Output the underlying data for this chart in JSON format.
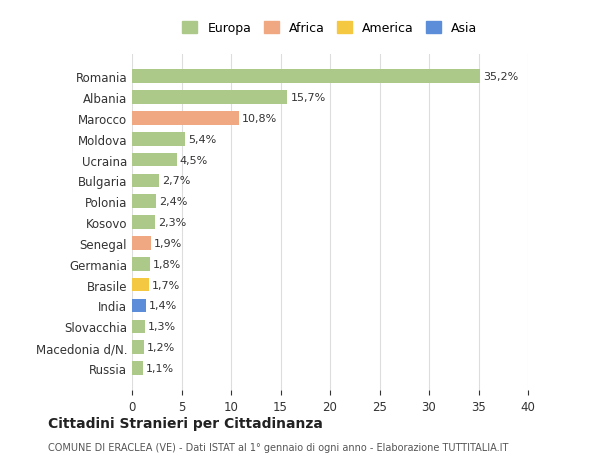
{
  "categories": [
    "Romania",
    "Albania",
    "Marocco",
    "Moldova",
    "Ucraina",
    "Bulgaria",
    "Polonia",
    "Kosovo",
    "Senegal",
    "Germania",
    "Brasile",
    "India",
    "Slovacchia",
    "Macedonia d/N.",
    "Russia"
  ],
  "values": [
    35.2,
    15.7,
    10.8,
    5.4,
    4.5,
    2.7,
    2.4,
    2.3,
    1.9,
    1.8,
    1.7,
    1.4,
    1.3,
    1.2,
    1.1
  ],
  "labels": [
    "35,2%",
    "15,7%",
    "10,8%",
    "5,4%",
    "4,5%",
    "2,7%",
    "2,4%",
    "2,3%",
    "1,9%",
    "1,8%",
    "1,7%",
    "1,4%",
    "1,3%",
    "1,2%",
    "1,1%"
  ],
  "colors": [
    "#adc98a",
    "#adc98a",
    "#f0a882",
    "#adc98a",
    "#adc98a",
    "#adc98a",
    "#adc98a",
    "#adc98a",
    "#f0a882",
    "#adc98a",
    "#f5c842",
    "#5b8dd9",
    "#adc98a",
    "#adc98a",
    "#adc98a"
  ],
  "legend": [
    {
      "label": "Europa",
      "color": "#adc98a"
    },
    {
      "label": "Africa",
      "color": "#f0a882"
    },
    {
      "label": "America",
      "color": "#f5c842"
    },
    {
      "label": "Asia",
      "color": "#5b8dd9"
    }
  ],
  "title": "Cittadini Stranieri per Cittadinanza",
  "subtitle": "COMUNE DI ERACLEA (VE) - Dati ISTAT al 1° gennaio di ogni anno - Elaborazione TUTTITALIA.IT",
  "xlim": [
    0,
    40
  ],
  "xticks": [
    0,
    5,
    10,
    15,
    20,
    25,
    30,
    35,
    40
  ],
  "background_color": "#ffffff",
  "grid_color": "#dddddd"
}
